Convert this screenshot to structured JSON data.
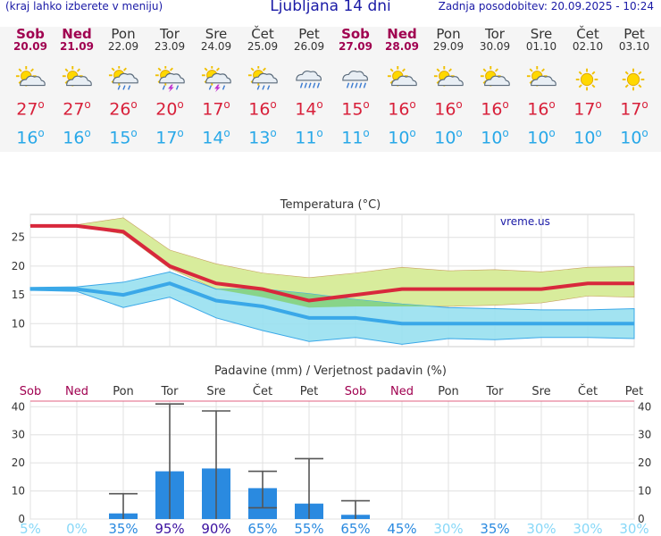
{
  "header": {
    "note": "(kraj lahko izberete v meniju)",
    "title": "Ljubljana 14 dni",
    "updated": "Zadnja posodobitev: 20.09.2025 - 10:24"
  },
  "days": [
    {
      "name": "Sob",
      "date": "20.09",
      "weekend": true,
      "icon": "sun-cloud-icon",
      "max": "27",
      "min": "16"
    },
    {
      "name": "Ned",
      "date": "21.09",
      "weekend": true,
      "icon": "sun-cloud-icon",
      "max": "27",
      "min": "16"
    },
    {
      "name": "Pon",
      "date": "22.09",
      "weekend": false,
      "icon": "sun-cloud-rain-icon",
      "max": "26",
      "min": "15"
    },
    {
      "name": "Tor",
      "date": "23.09",
      "weekend": false,
      "icon": "sun-cloud-thunder-icon",
      "max": "20",
      "min": "17"
    },
    {
      "name": "Sre",
      "date": "24.09",
      "weekend": false,
      "icon": "sun-cloud-thunder-icon",
      "max": "17",
      "min": "14"
    },
    {
      "name": "Čet",
      "date": "25.09",
      "weekend": false,
      "icon": "sun-cloud-rain-icon",
      "max": "16",
      "min": "13"
    },
    {
      "name": "Pet",
      "date": "26.09",
      "weekend": false,
      "icon": "cloud-rain-icon",
      "max": "14",
      "min": "11"
    },
    {
      "name": "Sob",
      "date": "27.09",
      "weekend": true,
      "icon": "cloud-rain-icon",
      "max": "15",
      "min": "11"
    },
    {
      "name": "Ned",
      "date": "28.09",
      "weekend": true,
      "icon": "sun-cloud-icon",
      "max": "16",
      "min": "10"
    },
    {
      "name": "Pon",
      "date": "29.09",
      "weekend": false,
      "icon": "sun-cloud-icon",
      "max": "16",
      "min": "10"
    },
    {
      "name": "Tor",
      "date": "30.09",
      "weekend": false,
      "icon": "sun-cloud-icon",
      "max": "16",
      "min": "10"
    },
    {
      "name": "Sre",
      "date": "01.10",
      "weekend": false,
      "icon": "sun-cloud-icon",
      "max": "16",
      "min": "10"
    },
    {
      "name": "Čet",
      "date": "02.10",
      "weekend": false,
      "icon": "sun-icon",
      "max": "17",
      "min": "10"
    },
    {
      "name": "Pet",
      "date": "03.10",
      "weekend": false,
      "icon": "sun-icon",
      "max": "17",
      "min": "10"
    }
  ],
  "colors": {
    "max_line": "#d8283c",
    "min_line": "#3aa8e8",
    "max_band": "#d8ec9c",
    "min_band": "#98e0f0",
    "overlap": "#88d488",
    "precip_bar": "#2a8ae0",
    "weekend": "#a00050",
    "prob_low": "#88d8f8",
    "prob_mid": "#2a8ae0",
    "prob_high": "#3a10a0"
  },
  "chart_data": [
    {
      "type": "line",
      "title": "Temperatura (°C)",
      "watermark": "vreme.us",
      "categories": [
        "Sob",
        "Ned",
        "Pon",
        "Tor",
        "Sre",
        "Čet",
        "Pet",
        "Sob",
        "Ned",
        "Pon",
        "Tor",
        "Sre",
        "Čet",
        "Pet"
      ],
      "yticks": [
        "25",
        "20",
        "15",
        "10"
      ],
      "ylim": [
        6,
        29
      ],
      "series": [
        {
          "role": "max",
          "values": [
            27,
            27,
            26,
            20,
            17,
            16,
            14,
            15,
            16,
            16,
            16,
            16,
            17,
            17
          ],
          "band_high": [
            27.2,
            27.2,
            28.4,
            22.8,
            20.4,
            18.8,
            18.0,
            18.8,
            19.8,
            19.2,
            19.4,
            19.0,
            19.8,
            19.9
          ],
          "band_low": [
            27.0,
            27.0,
            25.6,
            19.6,
            16.0,
            14.6,
            12.8,
            13.0,
            13.0,
            13.0,
            13.2,
            13.6,
            14.8,
            14.6
          ]
        },
        {
          "role": "min",
          "values": [
            16,
            16,
            15,
            17,
            14,
            13,
            11,
            11,
            10,
            10,
            10,
            10,
            10,
            10
          ],
          "band_high": [
            16.3,
            16.4,
            17.2,
            19.0,
            16.0,
            16.0,
            15.2,
            14.2,
            13.4,
            12.8,
            12.6,
            12.4,
            12.4,
            12.6
          ],
          "band_low": [
            15.8,
            15.6,
            12.8,
            14.6,
            11.0,
            8.8,
            6.9,
            7.6,
            6.4,
            7.4,
            7.2,
            7.6,
            7.6,
            7.4
          ]
        }
      ]
    },
    {
      "type": "bar",
      "title": "Padavine (mm) / Verjetnost padavin (%)",
      "categories": [
        "Sob",
        "Ned",
        "Pon",
        "Tor",
        "Sre",
        "Čet",
        "Pet",
        "Sob",
        "Ned",
        "Pon",
        "Tor",
        "Sre",
        "Čet",
        "Pet"
      ],
      "yticks": [
        "40",
        "30",
        "20",
        "10",
        "0"
      ],
      "ylim": [
        0,
        42
      ],
      "values": [
        0,
        0,
        2,
        17,
        18,
        11,
        5.5,
        1.5,
        0,
        0,
        0,
        0,
        0,
        0
      ],
      "range_low": [
        0,
        0,
        0,
        0,
        0,
        4,
        0,
        0,
        0,
        0,
        0,
        0,
        0,
        0
      ],
      "range_high": [
        0,
        0,
        9,
        41,
        38.5,
        17,
        21.5,
        6.5,
        0,
        0,
        0,
        0,
        0,
        0
      ],
      "probabilities": [
        "5%",
        "0%",
        "35%",
        "95%",
        "90%",
        "65%",
        "55%",
        "65%",
        "45%",
        "30%",
        "35%",
        "30%",
        "30%",
        "30%"
      ]
    }
  ]
}
